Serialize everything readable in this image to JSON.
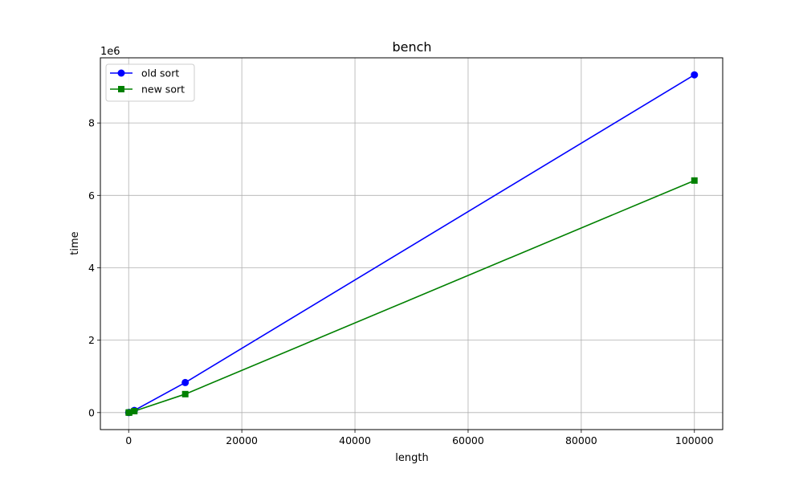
{
  "chart_data": {
    "type": "line",
    "title": "bench",
    "xlabel": "length",
    "ylabel": "time",
    "y_offset_label": "1e6",
    "xlim": [
      -5000,
      105000
    ],
    "ylim": [
      -0.47,
      9.8
    ],
    "y_scale_note": "values in units of 1e6",
    "x_ticks": [
      0,
      20000,
      40000,
      60000,
      80000,
      100000
    ],
    "x_tick_labels": [
      "0",
      "20000",
      "40000",
      "60000",
      "80000",
      "100000"
    ],
    "y_ticks": [
      0,
      2,
      4,
      6,
      8
    ],
    "y_tick_labels": [
      "0",
      "2",
      "4",
      "6",
      "8"
    ],
    "grid": true,
    "legend_position": "top-left",
    "series": [
      {
        "name": "old sort",
        "color": "#0000ff",
        "marker": "circle",
        "x": [
          10,
          100,
          1000,
          10000,
          100000
        ],
        "y": [
          0.0005,
          0.005,
          0.06,
          0.83,
          9.33
        ]
      },
      {
        "name": "new sort",
        "color": "#008000",
        "marker": "square",
        "x": [
          10,
          100,
          1000,
          10000,
          100000
        ],
        "y": [
          0.0003,
          0.003,
          0.04,
          0.51,
          6.41
        ]
      }
    ]
  }
}
